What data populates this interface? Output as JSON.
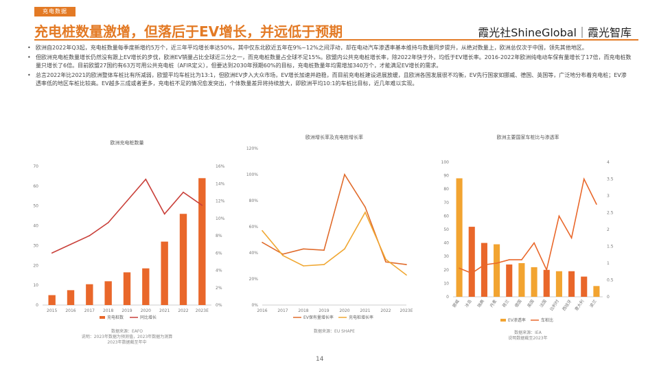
{
  "header": {
    "tag": "充电数据",
    "title": "充电桩数量激增，但落后于EV增长，并远低于预期",
    "brand": "霞光社ShineGlobal｜霞光智库"
  },
  "bullets": [
    "欧洲自2022年Q3起，充电桩数量每季度新增约5万个，近三年平均增长率达50%，其中仅东北欧近五年在9%~12%之间浮动，却在电动汽车渗透率基本维持与数量同步提升，从绝对数量上，欧洲总仅次于中国，领先其他地区。",
    "但欧洲充电桩数量增长仍然没有跟上EV增长的步伐，欧洲EV销量占比全球近三分之一，而充电桩数量占全球不足15%。欧盟内公共充电桩增长率，除2022年快于外，均低于EV增长率。2016-2022年欧洲纯电动车保有量增长了17倍，而充电桩数量只增长了6倍。目前欧盟27国约有63万可用公共充电桩（AFIR定义），但要达到2030年预期60%的目标，充电桩数量年均需增加340万个，才能满足EV增长的需求。",
    "总言2022年比2021的欧洲整体车桩比有所减弱，欧盟平均车桩比为13:1，但欧洲EV步入大众市场，EV增长加速并趋稳，而目前充电桩建设进展放缓，且欧洲各国发展很不均衡，EV先行国家如挪威、德国、英国等，广泛地分布着充电桩；EV渗透率低的地区车桩比较高。EV越多三成或者更多，充电桩不足的情况愈发突出，个体数量差异将持续放大，即欧洲平均10:1的车桩比目标，近几年难以实现。"
  ],
  "page_number": "14",
  "chart_data": [
    {
      "type": "bar",
      "title": "欧洲充电桩数量",
      "categories": [
        "2015",
        "2016",
        "2017",
        "2018",
        "2019",
        "2020",
        "2021",
        "2022",
        "2023E"
      ],
      "series": [
        {
          "name": "充电桩数",
          "type": "bar",
          "axis": "left",
          "color": "#e9672a",
          "values": [
            5,
            7.5,
            10.5,
            12,
            16.5,
            18.5,
            32,
            46,
            64
          ]
        },
        {
          "name": "同比增长",
          "type": "line",
          "axis": "right",
          "color": "#c9403a",
          "values": [
            6,
            7,
            8,
            9.5,
            12,
            14.5,
            10.5,
            13,
            11.5
          ]
        }
      ],
      "ylim_left": [
        0,
        70
      ],
      "yticks_left": [
        "0",
        "10",
        "20",
        "30",
        "40",
        "50",
        "60",
        "70"
      ],
      "ylim_right": [
        0,
        16
      ],
      "yticks_right": [
        "0%",
        "2%",
        "4%",
        "6%",
        "8%",
        "10%",
        "12%",
        "14%",
        "16%"
      ],
      "source": [
        "数据来源：EAFO",
        "说明：2023年数据为预测值，2023年数据为测算",
        "2023年数据截至年中"
      ]
    },
    {
      "type": "line",
      "title": "欧洲增长率及充电桩增长率",
      "categories": [
        "2016",
        "2017",
        "2018",
        "2019",
        "2020",
        "2021",
        "2022",
        "2023E"
      ],
      "series": [
        {
          "name": "EV保有量增长率",
          "color": "#e06a2a",
          "values": [
            48,
            39,
            43,
            42,
            100,
            75,
            33,
            31
          ]
        },
        {
          "name": "充电桩增长率",
          "color": "#f0a732",
          "values": [
            57,
            38,
            30,
            31,
            43,
            71,
            35,
            23
          ]
        }
      ],
      "ylim": [
        0,
        120
      ],
      "yticks": [
        "0%",
        "20%",
        "40%",
        "60%",
        "80%",
        "100%",
        "120%"
      ],
      "source": [
        "数据来源：EU SHAPE"
      ]
    },
    {
      "type": "bar",
      "title": "欧洲主要国家车桩比与渗透率",
      "categories": [
        "挪威",
        "冰岛",
        "瑞典",
        "丹麦",
        "荷兰",
        "德国",
        "英国",
        "法国",
        "比利时",
        "西班牙",
        "意大利",
        "波兰"
      ],
      "series": [
        {
          "name": "EV渗透率",
          "type": "bar",
          "axis": "left",
          "values": [
            88,
            52,
            40,
            39,
            24,
            25,
            22,
            20,
            19,
            19,
            15,
            8
          ]
        },
        {
          "name": "车桩比",
          "type": "line",
          "axis": "right",
          "color": "#e9672a",
          "values": [
            0.85,
            0.7,
            0.95,
            1.0,
            1.1,
            1.1,
            1.6,
            0.8,
            2.4,
            1.75,
            3.5,
            2.75
          ]
        }
      ],
      "bar_colors": [
        "#f2a431",
        "#e9672a",
        "#e9672a",
        "#f2a431",
        "#e9672a",
        "#f2a431",
        "#f2a431",
        "#e9672a",
        "#f2a431",
        "#e9672a",
        "#e9672a",
        "#f2a431"
      ],
      "ylim_left": [
        0,
        100
      ],
      "yticks_left": [
        "0",
        "10",
        "20",
        "30",
        "40",
        "50",
        "60",
        "70",
        "80",
        "90",
        "100"
      ],
      "ylim_right": [
        0,
        4
      ],
      "yticks_right": [
        "0",
        "0.5",
        "1",
        "1.5",
        "2",
        "2.5",
        "3",
        "3.5",
        "4"
      ],
      "source": [
        "数据来源：IEA",
        "说明数据截至2023年"
      ]
    }
  ]
}
